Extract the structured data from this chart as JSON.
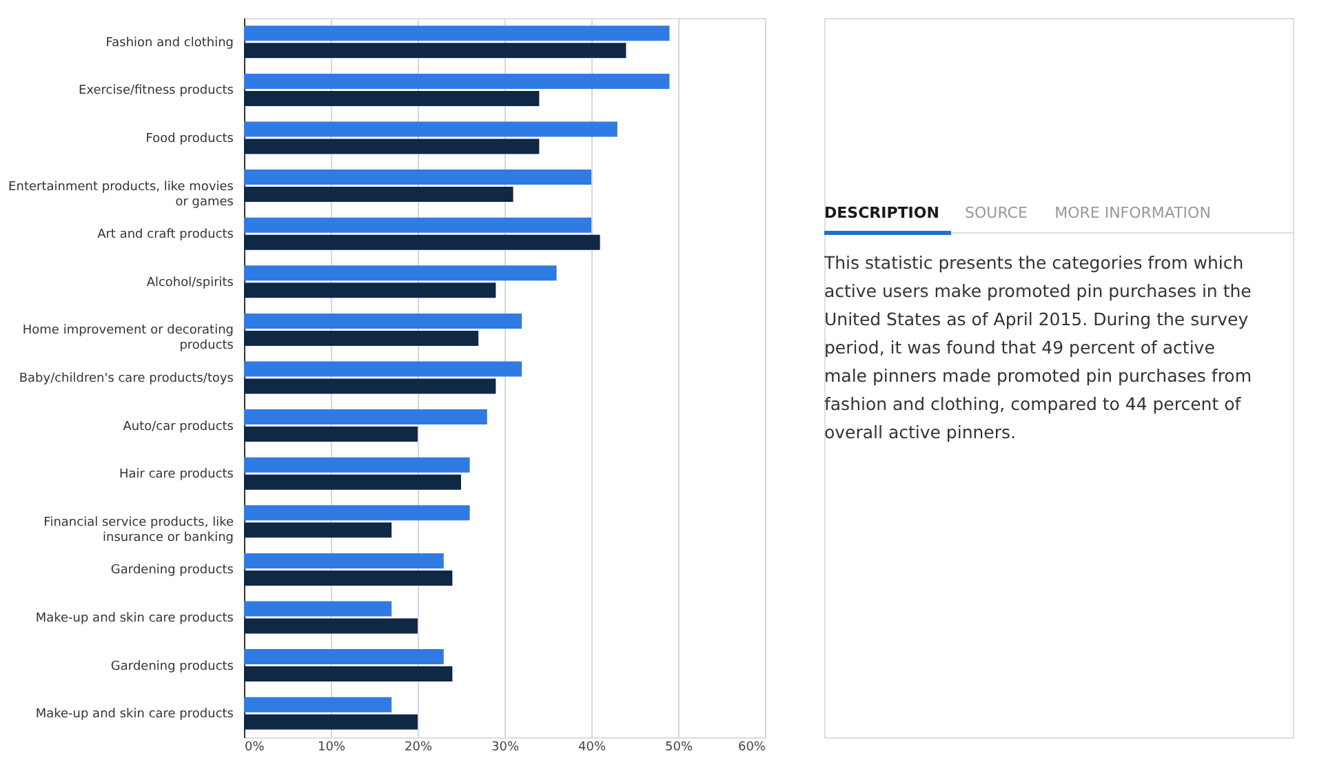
{
  "chart_data": [
    {
      "type": "bar",
      "orientation": "horizontal",
      "categories": [
        "Fashion and clothing",
        "Exercise/fitness products",
        "Food products",
        "Entertainment products, like movies or games",
        "Art and craft products",
        "Alcohol/spirits",
        "Home improvement or decorating products",
        "Baby/children's care products/toys",
        "Auto/car products",
        "Hair care products",
        "Financial service products, like insurance or banking",
        "Gardening products",
        "Make-up and skin care products",
        "Gardening products",
        "Make-up and skin care products"
      ],
      "series": [
        {
          "color": "#2f7be3",
          "values": [
            49,
            49,
            43,
            40,
            40,
            36,
            32,
            32,
            28,
            26,
            26,
            23,
            17,
            23,
            17
          ]
        },
        {
          "color": "#0f2846",
          "values": [
            44,
            34,
            34,
            31,
            41,
            29,
            27,
            29,
            20,
            25,
            17,
            24,
            20,
            24,
            20
          ]
        }
      ],
      "xlim": [
        0,
        60
      ],
      "xticks": [
        {
          "value": 0,
          "label": "0%"
        },
        {
          "value": 10,
          "label": "10%"
        },
        {
          "value": 20,
          "label": "20%"
        },
        {
          "value": 30,
          "label": "30%"
        },
        {
          "value": 40,
          "label": "40%"
        },
        {
          "value": 50,
          "label": "50%"
        },
        {
          "value": 60,
          "label": "60%"
        }
      ],
      "grid": "x",
      "legend": false
    },
    {
      "type": "other",
      "annotations": [
        "DESCRIPTION",
        "SOURCE",
        "MORE INFORMATION",
        "This statistic presents the categories from which active users make promoted pin purchases in the United States as of April 2015. During the survey period, it was found that 49 percent of active male pinners made promoted pin purchases from fashion and clothing, compared to 44 percent of overall active pinners."
      ]
    }
  ]
}
